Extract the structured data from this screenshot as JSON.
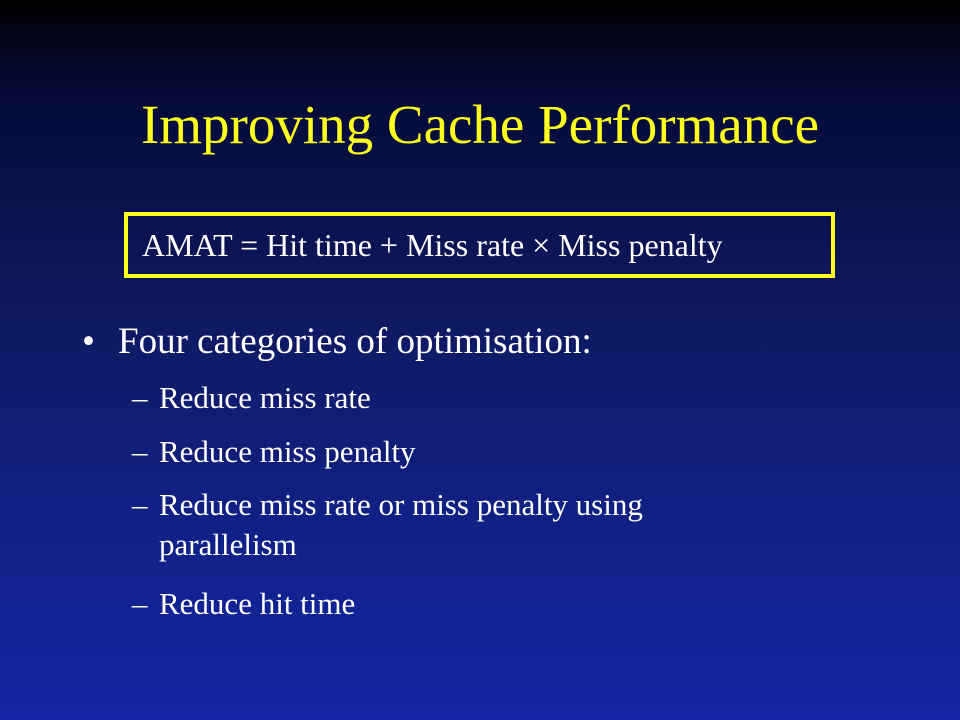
{
  "slide": {
    "title": "Improving Cache Performance",
    "formula": "AMAT = Hit time + Miss rate × Miss penalty",
    "bullet_marker": "•",
    "main_bullet": "Four categories of optimisation:",
    "sub_marker": "–",
    "sub_items": [
      "Reduce miss rate",
      "Reduce miss penalty",
      "Reduce miss rate or miss penalty using parallelism",
      "Reduce hit time"
    ]
  },
  "colors": {
    "title": "#ffff1f",
    "text": "#ffffff",
    "box_border": "#ffff1f",
    "background_top": "#000000",
    "background_bottom": "#1426a6"
  }
}
